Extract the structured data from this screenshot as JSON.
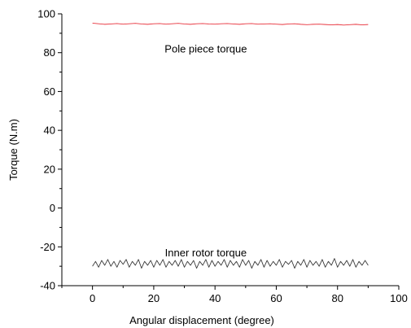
{
  "chart_data": {
    "type": "line",
    "xlabel": "Angular displacement (degree)",
    "ylabel": "Torque (N.m)",
    "xlim": [
      -10,
      100
    ],
    "ylim": [
      -40,
      100
    ],
    "x_ticks": [
      "0",
      "20",
      "40",
      "60",
      "80",
      "100"
    ],
    "y_ticks": [
      "-40",
      "-20",
      "0",
      "20",
      "40",
      "60",
      "80",
      "100"
    ],
    "grid": false,
    "annotations": [
      {
        "text": "Pole piece torque",
        "x": 37,
        "y": 82
      },
      {
        "text": "Inner rotor torque",
        "x": 37,
        "y": -23
      }
    ],
    "series": [
      {
        "color": "#e8323c",
        "x": [
          0,
          2,
          4,
          6,
          8,
          10,
          12,
          14,
          16,
          18,
          20,
          22,
          24,
          26,
          28,
          30,
          32,
          34,
          36,
          38,
          40,
          42,
          44,
          46,
          48,
          50,
          52,
          54,
          56,
          58,
          60,
          62,
          64,
          66,
          68,
          70,
          72,
          74,
          76,
          78,
          80,
          82,
          84,
          86,
          88,
          90
        ],
        "values": [
          95.2,
          94.9,
          94.6,
          94.8,
          95.0,
          94.7,
          94.9,
          95.1,
          94.8,
          94.6,
          94.9,
          95.0,
          94.7,
          94.9,
          95.1,
          94.8,
          94.6,
          94.9,
          95.0,
          94.8,
          94.7,
          94.9,
          95.0,
          94.8,
          94.6,
          94.9,
          95.0,
          94.7,
          94.8,
          94.9,
          94.7,
          94.5,
          94.8,
          94.9,
          94.6,
          94.4,
          94.6,
          94.7,
          94.5,
          94.3,
          94.5,
          94.2,
          94.4,
          94.6,
          94.3,
          94.5
        ]
      },
      {
        "color": "#3a3a3a",
        "x": [
          0,
          1,
          2,
          3,
          4,
          5,
          6,
          7,
          8,
          9,
          10,
          11,
          12,
          13,
          14,
          15,
          16,
          17,
          18,
          19,
          20,
          21,
          22,
          23,
          24,
          25,
          26,
          27,
          28,
          29,
          30,
          31,
          32,
          33,
          34,
          35,
          36,
          37,
          38,
          39,
          40,
          41,
          42,
          43,
          44,
          45,
          46,
          47,
          48,
          49,
          50,
          51,
          52,
          53,
          54,
          55,
          56,
          57,
          58,
          59,
          60,
          61,
          62,
          63,
          64,
          65,
          66,
          67,
          68,
          69,
          70,
          71,
          72,
          73,
          74,
          75,
          76,
          77,
          78,
          79,
          80,
          81,
          82,
          83,
          84,
          85,
          86,
          87,
          88,
          89,
          90
        ],
        "values": [
          -30,
          -27.5,
          -30.5,
          -27,
          -29.5,
          -26.5,
          -30,
          -27.5,
          -30.5,
          -27,
          -29,
          -26.5,
          -30.5,
          -27.5,
          -29.5,
          -26.5,
          -31,
          -27.5,
          -29.5,
          -27,
          -30.5,
          -27,
          -29.5,
          -26.5,
          -30.5,
          -27.5,
          -29.5,
          -27,
          -30,
          -26.5,
          -30.5,
          -27.5,
          -29.5,
          -27,
          -31,
          -27.5,
          -29.5,
          -26.5,
          -30.5,
          -27,
          -30,
          -27.5,
          -29.5,
          -26.5,
          -30.5,
          -27,
          -29.5,
          -27.5,
          -30.5,
          -26.5,
          -29.5,
          -27,
          -31,
          -27.5,
          -29.5,
          -26.5,
          -30.5,
          -27,
          -30,
          -27.5,
          -29.5,
          -26.5,
          -30.5,
          -27.5,
          -29,
          -27,
          -31,
          -27.5,
          -29.5,
          -26.5,
          -30.5,
          -27,
          -29.5,
          -27.5,
          -30,
          -26.5,
          -30.5,
          -27.5,
          -29.5,
          -26,
          -30.5,
          -27.5,
          -29.5,
          -27,
          -30,
          -26.5,
          -30.5,
          -27.5,
          -29.5,
          -27,
          -29.5
        ]
      }
    ]
  }
}
